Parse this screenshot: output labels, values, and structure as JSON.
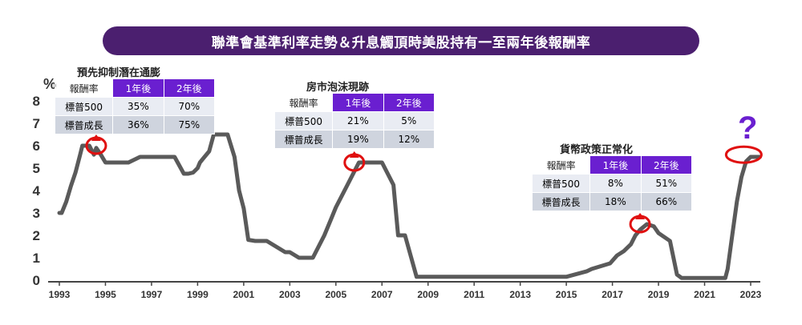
{
  "title": "聯準會基準利率走勢＆升息觸頂時美股持有一至兩年後報酬率",
  "chart_data": {
    "type": "line",
    "ylabel": "%",
    "ylim": [
      0,
      8
    ],
    "xlim": [
      1993,
      2023.6
    ],
    "yticks": [
      "0",
      "1",
      "2",
      "3",
      "4",
      "5",
      "6",
      "7",
      "8"
    ],
    "xticks": [
      "1993",
      "1995",
      "1997",
      "1999",
      "2001",
      "2003",
      "2005",
      "2007",
      "2009",
      "2011",
      "2013",
      "2015",
      "2017",
      "2019",
      "2021",
      "2023"
    ],
    "line_color": "#5a5a5a",
    "highlight_color": "#e01010",
    "x": [
      1993.0,
      1993.1,
      1993.3,
      1993.5,
      1993.7,
      1993.9,
      1994.0,
      1994.1,
      1994.3,
      1994.5,
      1994.6,
      1994.8,
      1995.0,
      1995.1,
      1995.3,
      1995.6,
      1996.0,
      1996.5,
      1997.0,
      1997.2,
      1997.6,
      1998.0,
      1998.4,
      1998.6,
      1998.8,
      1999.0,
      1999.1,
      1999.3,
      1999.5,
      1999.7,
      2000.0,
      2000.3,
      2000.6,
      2000.8,
      2001.0,
      2001.2,
      2001.5,
      2001.7,
      2001.9,
      2002.0,
      2002.8,
      2003.0,
      2003.4,
      2003.6,
      2004.0,
      2004.5,
      2004.8,
      2005.0,
      2005.5,
      2006.0,
      2006.5,
      2006.8,
      2007.0,
      2007.5,
      2007.7,
      2008.0,
      2008.5,
      2009.0,
      2012.0,
      2014.0,
      2015.0,
      2015.9,
      2016.1,
      2016.9,
      2017.2,
      2017.5,
      2017.8,
      2018.0,
      2018.2,
      2018.5,
      2018.8,
      2019.0,
      2019.5,
      2019.8,
      2020.0,
      2020.5,
      2021.0,
      2021.5,
      2021.9,
      2022.0,
      2022.2,
      2022.4,
      2022.6,
      2022.8,
      2023.0,
      2023.4
    ],
    "values": [
      3.0,
      3.0,
      3.5,
      4.2,
      4.8,
      5.6,
      6.0,
      6.0,
      6.0,
      5.6,
      5.9,
      5.6,
      5.25,
      5.25,
      5.25,
      5.25,
      5.25,
      5.5,
      5.5,
      5.5,
      5.5,
      5.5,
      4.75,
      4.75,
      4.8,
      5.0,
      5.25,
      5.5,
      5.75,
      6.5,
      6.5,
      6.5,
      5.5,
      4.0,
      3.2,
      1.8,
      1.75,
      1.75,
      1.75,
      1.75,
      1.25,
      1.25,
      1.0,
      1.0,
      1.0,
      2.0,
      2.75,
      3.25,
      4.25,
      5.25,
      5.25,
      5.25,
      5.25,
      4.25,
      2.0,
      2.0,
      0.15,
      0.15,
      0.15,
      0.15,
      0.15,
      0.4,
      0.5,
      0.75,
      1.1,
      1.3,
      1.6,
      2.0,
      2.25,
      2.5,
      2.4,
      2.1,
      1.75,
      0.25,
      0.1,
      0.1,
      0.1,
      0.1,
      0.1,
      0.5,
      2.0,
      3.5,
      4.6,
      5.3,
      5.5,
      5.5
    ]
  },
  "annotations": [
    {
      "title": "預先抑制潛在通膨",
      "row_header": "報酬率",
      "cols": [
        "1年後",
        "2年後"
      ],
      "rows": [
        {
          "label": "標普500",
          "v1": "35%",
          "v2": "70%"
        },
        {
          "label": "標普成長",
          "v1": "36%",
          "v2": "75%"
        }
      ]
    },
    {
      "title": "房市泡沫現跡",
      "row_header": "報酬率",
      "cols": [
        "1年後",
        "2年後"
      ],
      "rows": [
        {
          "label": "標普500",
          "v1": "21%",
          "v2": "5%"
        },
        {
          "label": "標普成長",
          "v1": "19%",
          "v2": "12%"
        }
      ]
    },
    {
      "title": "貨幣政策正常化",
      "row_header": "報酬率",
      "cols": [
        "1年後",
        "2年後"
      ],
      "rows": [
        {
          "label": "標普500",
          "v1": "8%",
          "v2": "51%"
        },
        {
          "label": "標普成長",
          "v1": "18%",
          "v2": "66%"
        }
      ]
    }
  ],
  "question_mark": "?"
}
